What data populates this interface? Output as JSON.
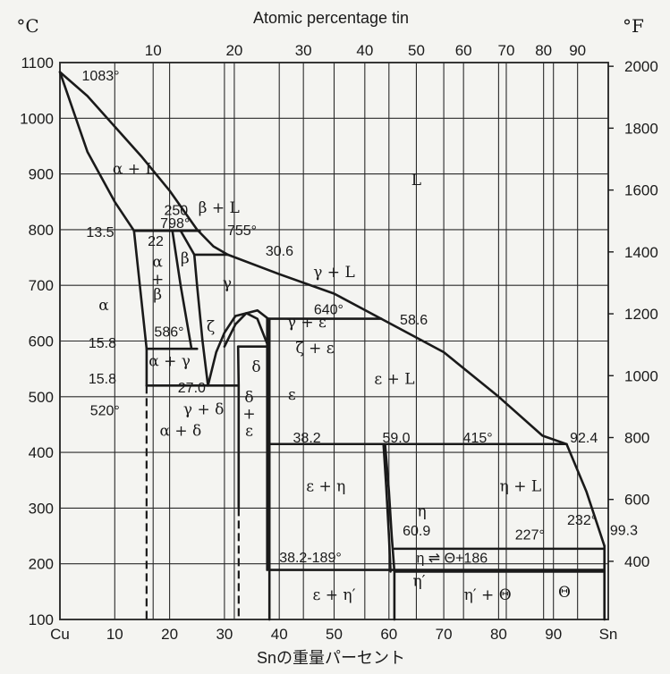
{
  "chart_data": {
    "type": "phase_diagram",
    "title": "Atomic percentage tin",
    "xlabel": "Snの重量パーセント",
    "ylabel_left": "°C",
    "ylabel_right": "°F",
    "xlim": [
      0,
      100
    ],
    "ylim": [
      100,
      1100
    ],
    "bottom_ticks": [
      "Cu",
      "10",
      "20",
      "30",
      "40",
      "50",
      "60",
      "70",
      "80",
      "90",
      "Sn"
    ],
    "top_ticks": [
      {
        "label": "10",
        "wt": 17
      },
      {
        "label": "20",
        "wt": 31.8
      },
      {
        "label": "30",
        "wt": 44.4
      },
      {
        "label": "40",
        "wt": 55.6
      },
      {
        "label": "50",
        "wt": 65
      },
      {
        "label": "60",
        "wt": 73.6
      },
      {
        "label": "70",
        "wt": 81.4
      },
      {
        "label": "80",
        "wt": 88.2
      },
      {
        "label": "90",
        "wt": 94.4
      }
    ],
    "left_ticks": [
      "1100",
      "1000",
      "900",
      "800",
      "700",
      "600",
      "500",
      "400",
      "300",
      "200",
      "100"
    ],
    "right_ticks": [
      {
        "label": "2000",
        "f": 2000
      },
      {
        "label": "1800",
        "f": 1800
      },
      {
        "label": "1600",
        "f": 1600
      },
      {
        "label": "1400",
        "f": 1400
      },
      {
        "label": "1200",
        "f": 1200
      },
      {
        "label": "1000",
        "f": 1000
      },
      {
        "label": "800",
        "f": 800
      },
      {
        "label": "600",
        "f": 600
      },
      {
        "label": "400",
        "f": 400
      }
    ],
    "curves": [
      {
        "name": "liquidus",
        "points": [
          [
            0,
            1083
          ],
          [
            5,
            1040
          ],
          [
            10,
            985
          ],
          [
            15,
            930
          ],
          [
            20,
            870
          ],
          [
            25,
            800
          ],
          [
            28,
            770
          ],
          [
            30.6,
            755
          ],
          [
            40,
            720
          ],
          [
            50,
            685
          ],
          [
            58.6,
            640
          ],
          [
            70,
            580
          ],
          [
            80,
            500
          ],
          [
            88,
            430
          ],
          [
            92.4,
            415
          ],
          [
            96,
            330
          ],
          [
            99.3,
            232
          ]
        ]
      },
      {
        "name": "alpha-solidus",
        "points": [
          [
            0,
            1083
          ],
          [
            5,
            940
          ],
          [
            10,
            850
          ],
          [
            13.5,
            798
          ],
          [
            22,
            798
          ]
        ]
      },
      {
        "name": "alpha-solvus",
        "points": [
          [
            13.5,
            798
          ],
          [
            15.8,
            586
          ],
          [
            15.8,
            520
          ]
        ]
      },
      {
        "name": "beta-left",
        "points": [
          [
            20.5,
            798
          ],
          [
            22,
            700
          ],
          [
            24,
            586
          ]
        ]
      },
      {
        "name": "beta-right",
        "points": [
          [
            22,
            798
          ],
          [
            24.5,
            755
          ],
          [
            25,
            700
          ],
          [
            26,
            600
          ],
          [
            27,
            520
          ]
        ]
      },
      {
        "name": "gamma-right",
        "points": [
          [
            27,
            520
          ],
          [
            28.5,
            580
          ],
          [
            30,
            615
          ],
          [
            32,
            645
          ],
          [
            36,
            655
          ],
          [
            38,
            640
          ]
        ]
      },
      {
        "name": "zeta-dome",
        "points": [
          [
            30,
            590
          ],
          [
            32,
            630
          ],
          [
            34,
            650
          ],
          [
            36,
            640
          ],
          [
            38,
            590
          ]
        ]
      },
      {
        "name": "delta-phase",
        "points": [
          [
            32.5,
            590
          ],
          [
            32.6,
            520
          ],
          [
            32.6,
            300
          ]
        ]
      },
      {
        "name": "epsilon-left",
        "points": [
          [
            37.8,
            640
          ],
          [
            37.8,
            189
          ]
        ]
      },
      {
        "name": "epsilon-right",
        "points": [
          [
            38.2,
            640
          ],
          [
            38.2,
            100
          ]
        ]
      },
      {
        "name": "eta-left",
        "points": [
          [
            59,
            415
          ],
          [
            59.5,
            340
          ],
          [
            60,
            250
          ],
          [
            60.3,
            186
          ]
        ]
      },
      {
        "name": "eta-right",
        "points": [
          [
            59.3,
            415
          ],
          [
            60,
            330
          ],
          [
            60.5,
            250
          ],
          [
            61,
            186
          ],
          [
            61,
            100
          ]
        ]
      },
      {
        "name": "theta",
        "points": [
          [
            99.3,
            232
          ],
          [
            99.3,
            100
          ]
        ]
      }
    ],
    "horizontal_lines": [
      {
        "name": "peritectic-798",
        "temp": 798,
        "from": 13.5,
        "to": 25.5
      },
      {
        "name": "peritectic-755",
        "temp": 755,
        "from": 24.5,
        "to": 30.6
      },
      {
        "name": "eutectoid-586",
        "temp": 586,
        "from": 15.8,
        "to": 25
      },
      {
        "name": "peritectic-640",
        "temp": 640,
        "from": 38,
        "to": 58.6
      },
      {
        "name": "eutectoid-520",
        "temp": 520,
        "from": 15.8,
        "to": 32.5
      },
      {
        "name": "peritectic-590",
        "temp": 590,
        "from": 32.5,
        "to": 38.2
      },
      {
        "name": "peritectic-415",
        "temp": 415,
        "from": 38.2,
        "to": 92.4
      },
      {
        "name": "eutectic-227",
        "temp": 227,
        "from": 61,
        "to": 99.3
      },
      {
        "name": "transition-189",
        "temp": 189,
        "from": 38.2,
        "to": 99.3
      },
      {
        "name": "transition-186",
        "temp": 186,
        "from": 61,
        "to": 99.3
      }
    ],
    "dashed_lines": [
      {
        "name": "alpha-solvus-low",
        "wt": 15.8,
        "from": 520,
        "to": 100
      },
      {
        "name": "delta-low",
        "wt": 32.6,
        "from": 300,
        "to": 100
      }
    ],
    "phase_labels": [
      {
        "text": "L",
        "x": 65,
        "y": 880
      },
      {
        "text": "α + L",
        "x": 13.5,
        "y": 900
      },
      {
        "text": "β + L",
        "x": 29,
        "y": 830
      },
      {
        "text": "γ + L",
        "x": 50,
        "y": 715
      },
      {
        "text": "α",
        "x": 8,
        "y": 655
      },
      {
        "text": "α",
        "x": 17.8,
        "y": 733
      },
      {
        "text": "+",
        "x": 17.8,
        "y": 702
      },
      {
        "text": "β",
        "x": 17.8,
        "y": 675
      },
      {
        "text": "β",
        "x": 22.8,
        "y": 740
      },
      {
        "text": "γ",
        "x": 30.5,
        "y": 695
      },
      {
        "text": "ζ",
        "x": 27.5,
        "y": 617
      },
      {
        "text": "α + γ",
        "x": 20,
        "y": 555
      },
      {
        "text": "δ",
        "x": 35.8,
        "y": 545
      },
      {
        "text": "ζ + ε",
        "x": 46.5,
        "y": 578
      },
      {
        "text": "γ + ε",
        "x": 45,
        "y": 625
      },
      {
        "text": "ε + L",
        "x": 61,
        "y": 523
      },
      {
        "text": "ε",
        "x": 42.3,
        "y": 495
      },
      {
        "text": "γ + δ",
        "x": 26.2,
        "y": 468
      },
      {
        "text": "α + δ",
        "x": 22,
        "y": 430
      },
      {
        "text": "δ",
        "x": 34.5,
        "y": 490
      },
      {
        "text": "+",
        "x": 34.5,
        "y": 460
      },
      {
        "text": "ε",
        "x": 34.5,
        "y": 430
      },
      {
        "text": "ε + η",
        "x": 48.5,
        "y": 330
      },
      {
        "text": "η + L",
        "x": 84,
        "y": 330
      },
      {
        "text": "η",
        "x": 66,
        "y": 285
      },
      {
        "text": "ε + η′",
        "x": 50,
        "y": 135
      },
      {
        "text": "η′",
        "x": 65.5,
        "y": 160
      },
      {
        "text": "η′ + Θ",
        "x": 78,
        "y": 135
      },
      {
        "text": "Θ",
        "x": 92,
        "y": 140
      }
    ],
    "annotations": [
      {
        "text": "1083°",
        "x": 4,
        "y": 1068
      },
      {
        "text": "250",
        "x": 19,
        "y": 826
      },
      {
        "text": "798°",
        "x": 18.3,
        "y": 803
      },
      {
        "text": "755°",
        "x": 30.5,
        "y": 790
      },
      {
        "text": "13.5",
        "x": 4.8,
        "y": 787
      },
      {
        "text": "22",
        "x": 16,
        "y": 771
      },
      {
        "text": "30.6",
        "x": 37.5,
        "y": 753
      },
      {
        "text": "640°",
        "x": 46.3,
        "y": 648
      },
      {
        "text": "58.6",
        "x": 62,
        "y": 630
      },
      {
        "text": "586°",
        "x": 17.2,
        "y": 608
      },
      {
        "text": "15.8",
        "x": 5.2,
        "y": 588
      },
      {
        "text": "15.8",
        "x": 5.2,
        "y": 524
      },
      {
        "text": "27.0",
        "x": 21.5,
        "y": 508
      },
      {
        "text": "520°",
        "x": 5.5,
        "y": 467
      },
      {
        "text": "38.2",
        "x": 42.5,
        "y": 418
      },
      {
        "text": "59.0",
        "x": 58.8,
        "y": 418
      },
      {
        "text": "415°",
        "x": 73.5,
        "y": 418
      },
      {
        "text": "92.4",
        "x": 93,
        "y": 418
      },
      {
        "text": "232°",
        "x": 92.5,
        "y": 270
      },
      {
        "text": "99.3",
        "x": 100.3,
        "y": 252
      },
      {
        "text": "227°",
        "x": 83,
        "y": 244
      },
      {
        "text": "60.9",
        "x": 62.5,
        "y": 251
      },
      {
        "text": "38.2-189°",
        "x": 40,
        "y": 203
      },
      {
        "text": "η ⇌ Θ+186",
        "x": 65,
        "y": 202
      }
    ],
    "grid": true
  }
}
